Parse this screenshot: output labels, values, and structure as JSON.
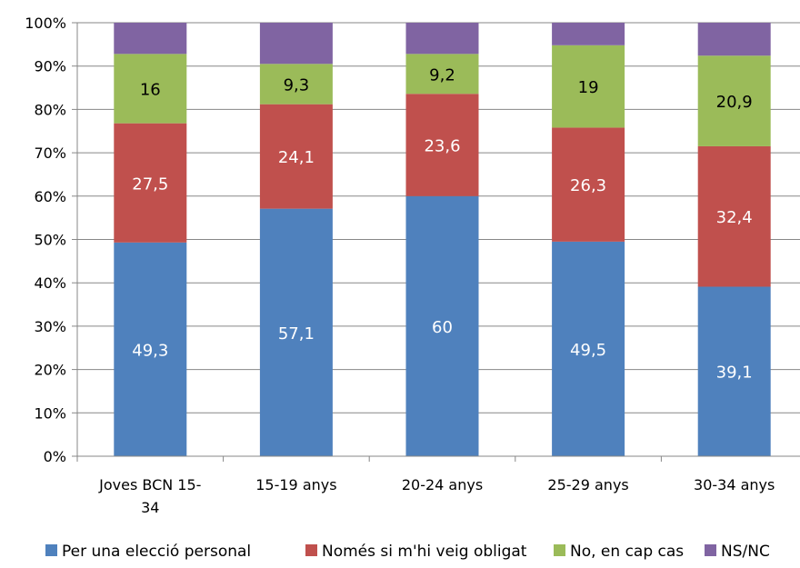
{
  "chart_data": {
    "type": "bar",
    "stacked": true,
    "percent": true,
    "categories": [
      [
        "Joves BCN 15-",
        "34"
      ],
      [
        "15-19 anys"
      ],
      [
        "20-24 anys"
      ],
      [
        "25-29 anys"
      ],
      [
        "30-34 anys"
      ]
    ],
    "series": [
      {
        "name": "Per una elecció personal",
        "color": "#4f81bd",
        "label_color": "#ffffff",
        "values": [
          49.3,
          57.1,
          60,
          49.5,
          39.1
        ],
        "labels": [
          "49,3",
          "57,1",
          "60",
          "49,5",
          "39,1"
        ]
      },
      {
        "name": "Només si m'hi veig obligat",
        "color": "#c0504d",
        "label_color": "#ffffff",
        "values": [
          27.5,
          24.1,
          23.6,
          26.3,
          32.4
        ],
        "labels": [
          "27,5",
          "24,1",
          "23,6",
          "26,3",
          "32,4"
        ]
      },
      {
        "name": "No, en cap cas",
        "color": "#9bbb59",
        "label_color": "#000000",
        "values": [
          16,
          9.3,
          9.2,
          19,
          20.9
        ],
        "labels": [
          "16",
          "9,3",
          "9,2",
          "19",
          "20,9"
        ]
      },
      {
        "name": "NS/NC",
        "color": "#8064a2",
        "label_color": "#ffffff",
        "values": [
          7.2,
          9.5,
          7.2,
          5.2,
          7.6
        ],
        "labels": [
          "",
          "",
          "",
          "",
          ""
        ]
      }
    ],
    "y_ticks": [
      "0%",
      "10%",
      "20%",
      "30%",
      "40%",
      "50%",
      "60%",
      "70%",
      "80%",
      "90%",
      "100%"
    ],
    "ylim": [
      0,
      100
    ],
    "grid": true,
    "legend_position": "bottom"
  }
}
